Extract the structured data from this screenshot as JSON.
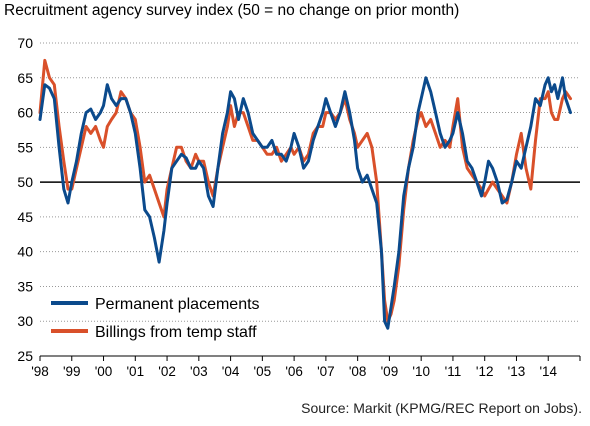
{
  "chart_data": {
    "type": "line",
    "title": "Recruitment agency survey index (50 = no change on prior month)",
    "source": "Source: Markit (KPMG/REC Report on Jobs).",
    "ylim": [
      25,
      70
    ],
    "yticks": [
      25,
      30,
      35,
      40,
      45,
      50,
      55,
      60,
      65,
      70
    ],
    "xlim": [
      1998,
      2015
    ],
    "xticks": [
      "'98",
      "'99",
      "'00",
      "'01",
      "'02",
      "'03",
      "'04",
      "'05",
      "'06",
      "'07",
      "'08",
      "'09",
      "'10",
      "'11",
      "'12",
      "'13",
      "'14"
    ],
    "grid": "horizontal dotted",
    "reference_line": 50,
    "legend_position": "bottom-left",
    "series": [
      {
        "name": "Permanent placements",
        "color": "#0B4A8C",
        "points": [
          [
            1998.0,
            59
          ],
          [
            1998.15,
            64
          ],
          [
            1998.3,
            63.5
          ],
          [
            1998.45,
            62
          ],
          [
            1998.6,
            55
          ],
          [
            1998.75,
            49
          ],
          [
            1998.88,
            47
          ],
          [
            1999.0,
            50
          ],
          [
            1999.15,
            53
          ],
          [
            1999.3,
            57
          ],
          [
            1999.45,
            60
          ],
          [
            1999.6,
            60.5
          ],
          [
            1999.75,
            59
          ],
          [
            1999.9,
            60
          ],
          [
            2000.0,
            61
          ],
          [
            2000.12,
            64
          ],
          [
            2000.25,
            62
          ],
          [
            2000.4,
            61
          ],
          [
            2000.55,
            62
          ],
          [
            2000.7,
            62
          ],
          [
            2000.85,
            60
          ],
          [
            2001.0,
            57
          ],
          [
            2001.15,
            52
          ],
          [
            2001.3,
            46
          ],
          [
            2001.45,
            45
          ],
          [
            2001.6,
            42
          ],
          [
            2001.75,
            38.5
          ],
          [
            2001.9,
            43
          ],
          [
            2002.0,
            47
          ],
          [
            2002.15,
            52
          ],
          [
            2002.3,
            53
          ],
          [
            2002.45,
            54
          ],
          [
            2002.6,
            53.5
          ],
          [
            2002.75,
            52
          ],
          [
            2002.9,
            52
          ],
          [
            2003.0,
            53
          ],
          [
            2003.15,
            52
          ],
          [
            2003.3,
            48
          ],
          [
            2003.45,
            46.5
          ],
          [
            2003.6,
            52
          ],
          [
            2003.75,
            57
          ],
          [
            2003.9,
            60
          ],
          [
            2004.0,
            63
          ],
          [
            2004.12,
            62
          ],
          [
            2004.25,
            59
          ],
          [
            2004.4,
            62
          ],
          [
            2004.55,
            60
          ],
          [
            2004.7,
            57
          ],
          [
            2004.85,
            56
          ],
          [
            2005.0,
            55
          ],
          [
            2005.15,
            55
          ],
          [
            2005.3,
            56
          ],
          [
            2005.45,
            54
          ],
          [
            2005.6,
            54
          ],
          [
            2005.75,
            53
          ],
          [
            2005.9,
            55
          ],
          [
            2006.0,
            57
          ],
          [
            2006.15,
            55
          ],
          [
            2006.3,
            52
          ],
          [
            2006.45,
            53
          ],
          [
            2006.6,
            56
          ],
          [
            2006.75,
            58
          ],
          [
            2006.9,
            60
          ],
          [
            2007.0,
            62
          ],
          [
            2007.15,
            60
          ],
          [
            2007.3,
            58
          ],
          [
            2007.45,
            60
          ],
          [
            2007.6,
            63
          ],
          [
            2007.75,
            60
          ],
          [
            2007.9,
            56
          ],
          [
            2008.0,
            52
          ],
          [
            2008.15,
            50
          ],
          [
            2008.3,
            51
          ],
          [
            2008.45,
            49
          ],
          [
            2008.6,
            47
          ],
          [
            2008.75,
            40
          ],
          [
            2008.85,
            30
          ],
          [
            2008.95,
            29
          ],
          [
            2009.05,
            32
          ],
          [
            2009.15,
            35
          ],
          [
            2009.3,
            40
          ],
          [
            2009.45,
            48
          ],
          [
            2009.6,
            52
          ],
          [
            2009.75,
            55
          ],
          [
            2009.9,
            60
          ],
          [
            2010.0,
            62
          ],
          [
            2010.15,
            65
          ],
          [
            2010.3,
            63
          ],
          [
            2010.45,
            60
          ],
          [
            2010.6,
            57
          ],
          [
            2010.75,
            55
          ],
          [
            2010.9,
            56
          ],
          [
            2011.0,
            57
          ],
          [
            2011.15,
            60
          ],
          [
            2011.3,
            57
          ],
          [
            2011.45,
            53
          ],
          [
            2011.6,
            52
          ],
          [
            2011.75,
            50
          ],
          [
            2011.9,
            48
          ],
          [
            2012.0,
            50
          ],
          [
            2012.12,
            53
          ],
          [
            2012.25,
            52
          ],
          [
            2012.4,
            50
          ],
          [
            2012.55,
            47
          ],
          [
            2012.7,
            47.5
          ],
          [
            2012.85,
            50
          ],
          [
            2013.0,
            53
          ],
          [
            2013.15,
            52
          ],
          [
            2013.3,
            55
          ],
          [
            2013.45,
            58
          ],
          [
            2013.6,
            62
          ],
          [
            2013.75,
            61
          ],
          [
            2013.9,
            64
          ],
          [
            2014.0,
            65
          ],
          [
            2014.1,
            63
          ],
          [
            2014.2,
            64
          ],
          [
            2014.3,
            62
          ],
          [
            2014.45,
            65
          ],
          [
            2014.55,
            62
          ],
          [
            2014.7,
            60
          ]
        ]
      },
      {
        "name": "Billings from temp staff",
        "color": "#D9502A",
        "points": [
          [
            1998.0,
            60
          ],
          [
            1998.15,
            67.5
          ],
          [
            1998.3,
            65
          ],
          [
            1998.45,
            64
          ],
          [
            1998.6,
            58
          ],
          [
            1998.75,
            53
          ],
          [
            1998.88,
            49
          ],
          [
            1999.0,
            49
          ],
          [
            1999.15,
            52
          ],
          [
            1999.3,
            55
          ],
          [
            1999.45,
            58
          ],
          [
            1999.6,
            57
          ],
          [
            1999.75,
            58
          ],
          [
            1999.9,
            56
          ],
          [
            2000.0,
            55
          ],
          [
            2000.12,
            58
          ],
          [
            2000.25,
            59
          ],
          [
            2000.4,
            60
          ],
          [
            2000.55,
            63
          ],
          [
            2000.7,
            62
          ],
          [
            2000.85,
            60
          ],
          [
            2001.0,
            59
          ],
          [
            2001.15,
            55
          ],
          [
            2001.3,
            50
          ],
          [
            2001.45,
            51
          ],
          [
            2001.6,
            49
          ],
          [
            2001.75,
            47
          ],
          [
            2001.9,
            45
          ],
          [
            2002.0,
            49
          ],
          [
            2002.15,
            52
          ],
          [
            2002.3,
            55
          ],
          [
            2002.45,
            55
          ],
          [
            2002.6,
            53
          ],
          [
            2002.75,
            52
          ],
          [
            2002.9,
            54
          ],
          [
            2003.0,
            53
          ],
          [
            2003.15,
            53
          ],
          [
            2003.3,
            50
          ],
          [
            2003.45,
            48
          ],
          [
            2003.6,
            52
          ],
          [
            2003.75,
            55
          ],
          [
            2003.9,
            58
          ],
          [
            2004.0,
            61
          ],
          [
            2004.12,
            58
          ],
          [
            2004.25,
            60
          ],
          [
            2004.4,
            60
          ],
          [
            2004.55,
            58
          ],
          [
            2004.7,
            56
          ],
          [
            2004.85,
            56
          ],
          [
            2005.0,
            55
          ],
          [
            2005.15,
            54
          ],
          [
            2005.3,
            54
          ],
          [
            2005.45,
            55
          ],
          [
            2005.6,
            53
          ],
          [
            2005.75,
            54
          ],
          [
            2005.9,
            55
          ],
          [
            2006.0,
            54
          ],
          [
            2006.15,
            55
          ],
          [
            2006.3,
            53
          ],
          [
            2006.45,
            54
          ],
          [
            2006.6,
            57
          ],
          [
            2006.75,
            58
          ],
          [
            2006.9,
            58
          ],
          [
            2007.0,
            60
          ],
          [
            2007.15,
            60
          ],
          [
            2007.3,
            59
          ],
          [
            2007.45,
            60
          ],
          [
            2007.6,
            62
          ],
          [
            2007.75,
            59
          ],
          [
            2007.9,
            57
          ],
          [
            2008.0,
            55
          ],
          [
            2008.15,
            56
          ],
          [
            2008.3,
            57
          ],
          [
            2008.45,
            55
          ],
          [
            2008.6,
            50
          ],
          [
            2008.75,
            40
          ],
          [
            2008.85,
            33
          ],
          [
            2008.95,
            30
          ],
          [
            2009.05,
            31
          ],
          [
            2009.15,
            33
          ],
          [
            2009.3,
            38
          ],
          [
            2009.45,
            46
          ],
          [
            2009.6,
            52
          ],
          [
            2009.75,
            56
          ],
          [
            2009.9,
            59
          ],
          [
            2010.0,
            60
          ],
          [
            2010.15,
            58
          ],
          [
            2010.3,
            59
          ],
          [
            2010.45,
            57
          ],
          [
            2010.6,
            55
          ],
          [
            2010.75,
            56
          ],
          [
            2010.9,
            55
          ],
          [
            2011.0,
            58
          ],
          [
            2011.15,
            62
          ],
          [
            2011.3,
            55
          ],
          [
            2011.45,
            52
          ],
          [
            2011.6,
            51
          ],
          [
            2011.75,
            50
          ],
          [
            2011.9,
            49
          ],
          [
            2012.0,
            48
          ],
          [
            2012.12,
            49
          ],
          [
            2012.25,
            50
          ],
          [
            2012.4,
            49
          ],
          [
            2012.55,
            48
          ],
          [
            2012.7,
            47
          ],
          [
            2012.85,
            50
          ],
          [
            2013.0,
            54
          ],
          [
            2013.15,
            57
          ],
          [
            2013.3,
            52
          ],
          [
            2013.45,
            49
          ],
          [
            2013.6,
            56
          ],
          [
            2013.75,
            62
          ],
          [
            2013.9,
            62
          ],
          [
            2014.0,
            63
          ],
          [
            2014.1,
            60
          ],
          [
            2014.2,
            59
          ],
          [
            2014.3,
            59
          ],
          [
            2014.45,
            62
          ],
          [
            2014.55,
            63
          ],
          [
            2014.7,
            62
          ]
        ]
      }
    ]
  }
}
